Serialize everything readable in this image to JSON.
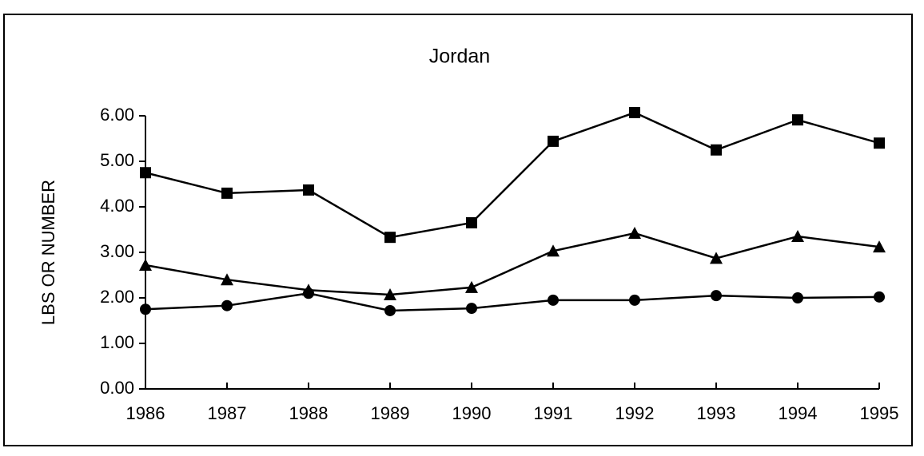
{
  "chart_data": {
    "type": "line",
    "title": "Jordan",
    "ylabel": "LBS OR NUMBER",
    "categories": [
      "1986",
      "1987",
      "1988",
      "1989",
      "1990",
      "1991",
      "1992",
      "1993",
      "1994",
      "1995"
    ],
    "series": [
      {
        "color": "#000000",
        "marker": "square",
        "values": [
          4.75,
          4.3,
          4.37,
          3.33,
          3.65,
          5.44,
          6.07,
          5.25,
          5.91,
          5.4
        ]
      },
      {
        "color": "#000000",
        "marker": "triangle",
        "values": [
          2.72,
          2.4,
          2.17,
          2.07,
          2.23,
          3.03,
          3.42,
          2.87,
          3.35,
          3.12
        ]
      },
      {
        "color": "#000000",
        "marker": "circle",
        "values": [
          1.75,
          1.83,
          2.1,
          1.72,
          1.77,
          1.95,
          1.95,
          2.05,
          2.0,
          2.02
        ]
      }
    ],
    "ylim": [
      0,
      6
    ],
    "yticks": [
      {
        "value": 0,
        "label": "0.00"
      },
      {
        "value": 1,
        "label": "1.00"
      },
      {
        "value": 2,
        "label": "2.00"
      },
      {
        "value": 3,
        "label": "3.00"
      },
      {
        "value": 4,
        "label": "4.00"
      },
      {
        "value": 5,
        "label": "5.00"
      },
      {
        "value": 6,
        "label": "6.00"
      }
    ],
    "grid": false
  }
}
